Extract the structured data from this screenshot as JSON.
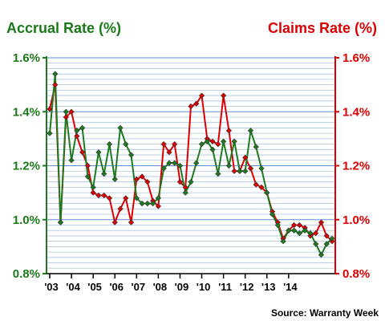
{
  "chart_data": {
    "type": "line",
    "left_axis_title": "Accrual Rate (%)",
    "right_axis_title": "Claims Rate (%)",
    "source": "Source: Warranty Week",
    "ylim": [
      0.8,
      1.6
    ],
    "y_ticks": [
      "0.8%",
      "1.0%",
      "1.2%",
      "1.4%",
      "1.6%"
    ],
    "y_tick_values": [
      0.8,
      1.0,
      1.2,
      1.4,
      1.6
    ],
    "x_tick_labels": [
      "'03",
      "'04",
      "'05",
      "'06",
      "'07",
      "'08",
      "'09",
      "'10",
      "'11",
      "'12",
      "'13",
      "'14"
    ],
    "x_quarter_start": 2003.0,
    "grid": true,
    "colors": {
      "accrual": "#1e7a1e",
      "claims": "#dd0000",
      "grid": "#a9c4e0",
      "gridline_strong": "#5a8fd0"
    },
    "series": [
      {
        "axis": "left",
        "values": [
          1.32,
          1.54,
          0.99,
          1.4,
          1.22,
          1.33,
          1.34,
          1.16,
          1.12,
          1.25,
          1.17,
          1.28,
          1.15,
          1.34,
          1.28,
          1.24,
          1.08,
          1.06,
          1.06,
          1.06,
          1.08,
          1.19,
          1.21,
          1.21,
          1.2,
          1.1,
          1.14,
          1.21,
          1.28,
          1.29,
          1.26,
          1.17,
          1.29,
          1.2,
          1.29,
          1.18,
          1.18,
          1.33,
          1.27,
          1.19,
          1.1,
          1.02,
          0.98,
          0.92,
          0.96,
          0.96,
          0.95,
          0.96,
          0.95,
          0.91,
          0.87,
          0.91,
          0.93
        ]
      },
      {
        "axis": "right",
        "values": [
          1.41,
          1.5,
          0.99,
          1.38,
          1.4,
          1.31,
          1.25,
          1.2,
          1.1,
          1.09,
          1.09,
          1.08,
          0.99,
          1.04,
          1.08,
          0.99,
          1.15,
          1.16,
          1.14,
          1.07,
          1.05,
          1.28,
          1.25,
          1.28,
          1.14,
          1.12,
          1.42,
          1.43,
          1.46,
          1.3,
          1.29,
          1.28,
          1.46,
          1.33,
          1.18,
          1.18,
          1.23,
          1.19,
          1.13,
          1.12,
          1.1,
          1.03,
          0.99,
          0.93,
          0.96,
          0.98,
          0.98,
          0.97,
          0.94,
          0.95,
          0.99,
          0.94,
          0.92
        ]
      }
    ]
  }
}
